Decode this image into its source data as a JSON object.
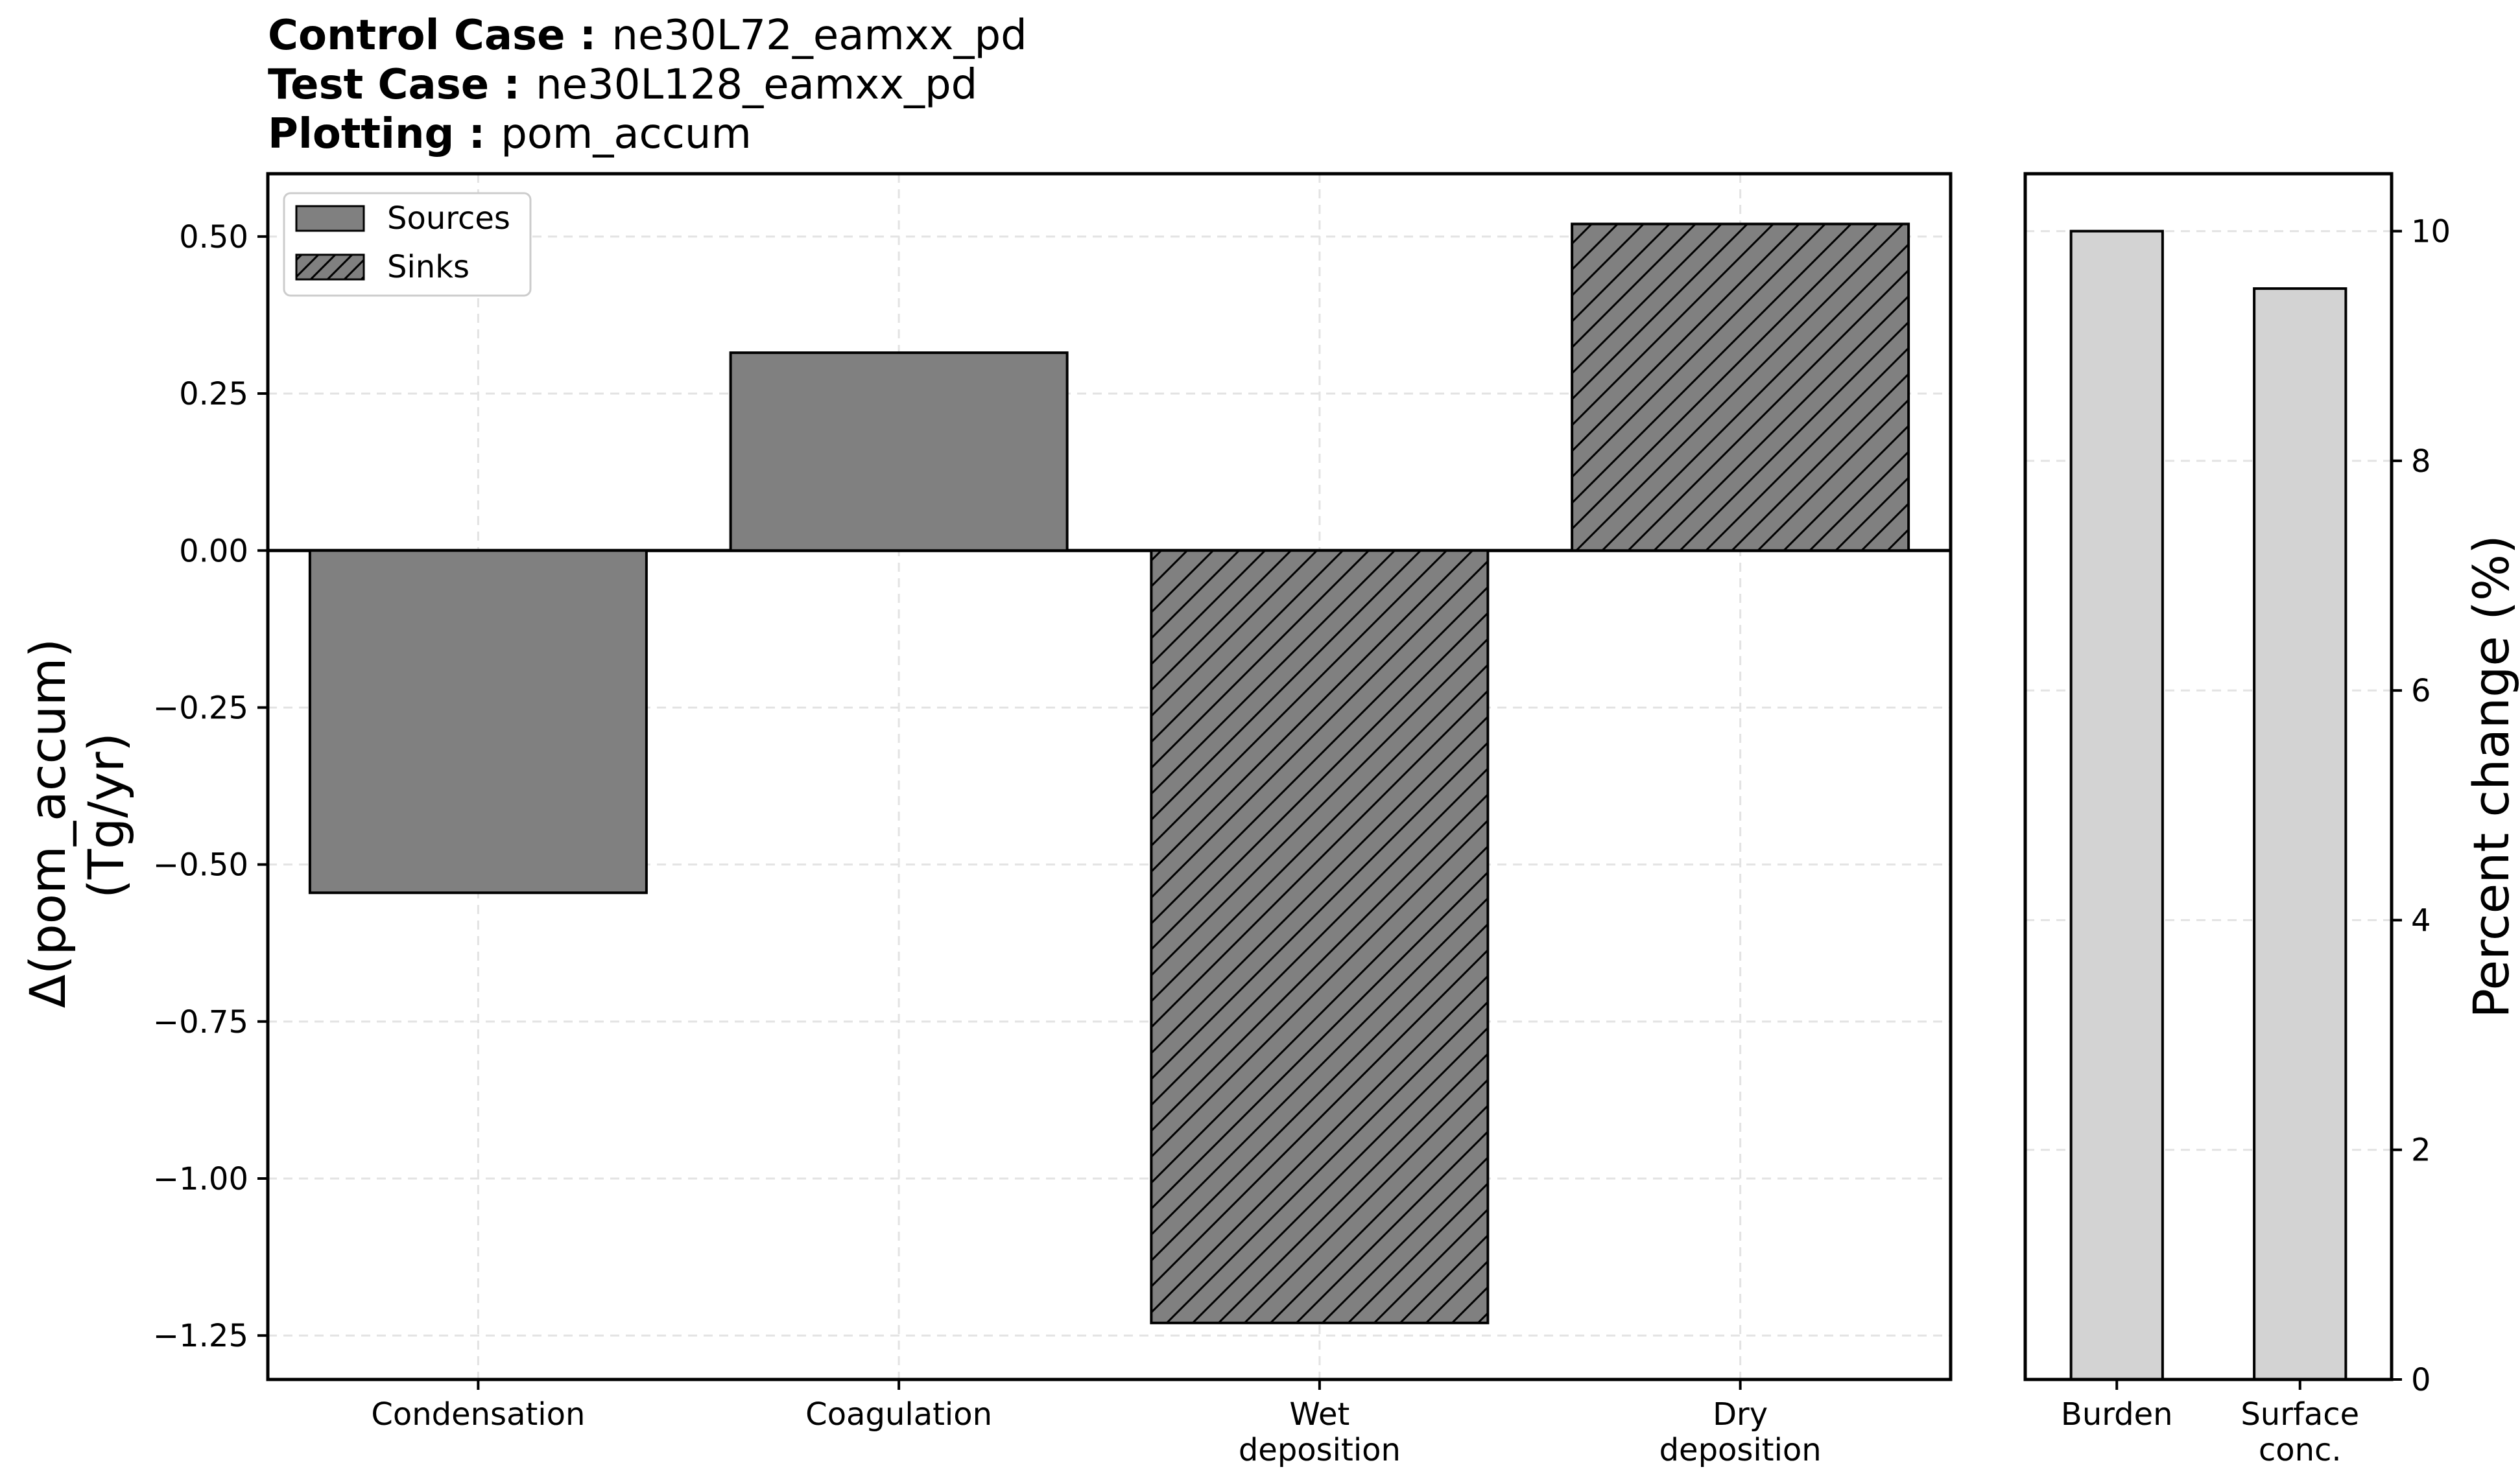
{
  "header": {
    "control_key": "Control Case :",
    "control_value": "ne30L72_eamxx_pd",
    "test_key": "Test Case :",
    "test_value": "ne30L128_eamxx_pd",
    "plotting_key": "Plotting :",
    "plotting_value": "pom_accum"
  },
  "chart_data": [
    {
      "type": "bar",
      "categories": [
        "Condensation",
        "Coagulation",
        "Wet\ndeposition",
        "Dry\ndeposition"
      ],
      "values": [
        -0.545,
        0.315,
        -1.23,
        0.52
      ],
      "kinds": [
        "source",
        "source",
        "sink",
        "sink"
      ],
      "ylabel_line1": "Δ(pom_accum)",
      "ylabel_line2": "(Tg/yr)",
      "ylim": [
        -1.32,
        0.6
      ],
      "yticks": [
        0.5,
        0.25,
        0.0,
        -0.25,
        -0.5,
        -0.75,
        -1.0,
        -1.25
      ],
      "ytick_labels": [
        "0.50",
        "0.25",
        "0.00",
        "−0.25",
        "−0.50",
        "−0.75",
        "−1.00",
        "−1.25"
      ],
      "bar_color": "#808080",
      "legend": {
        "position": "top-left",
        "entries": [
          "Sources",
          "Sinks"
        ]
      },
      "grid": true
    },
    {
      "type": "bar",
      "categories": [
        "Burden",
        "Surface\nconc."
      ],
      "values": [
        10.0,
        9.5
      ],
      "ylabel": "Percent change (%)",
      "ylim": [
        0,
        10.5
      ],
      "yticks": [
        0,
        2,
        4,
        6,
        8,
        10
      ],
      "ytick_labels": [
        "0",
        "2",
        "4",
        "6",
        "8",
        "10"
      ],
      "yaxis_side": "right",
      "bar_color": "#d3d3d3",
      "grid": true
    }
  ]
}
